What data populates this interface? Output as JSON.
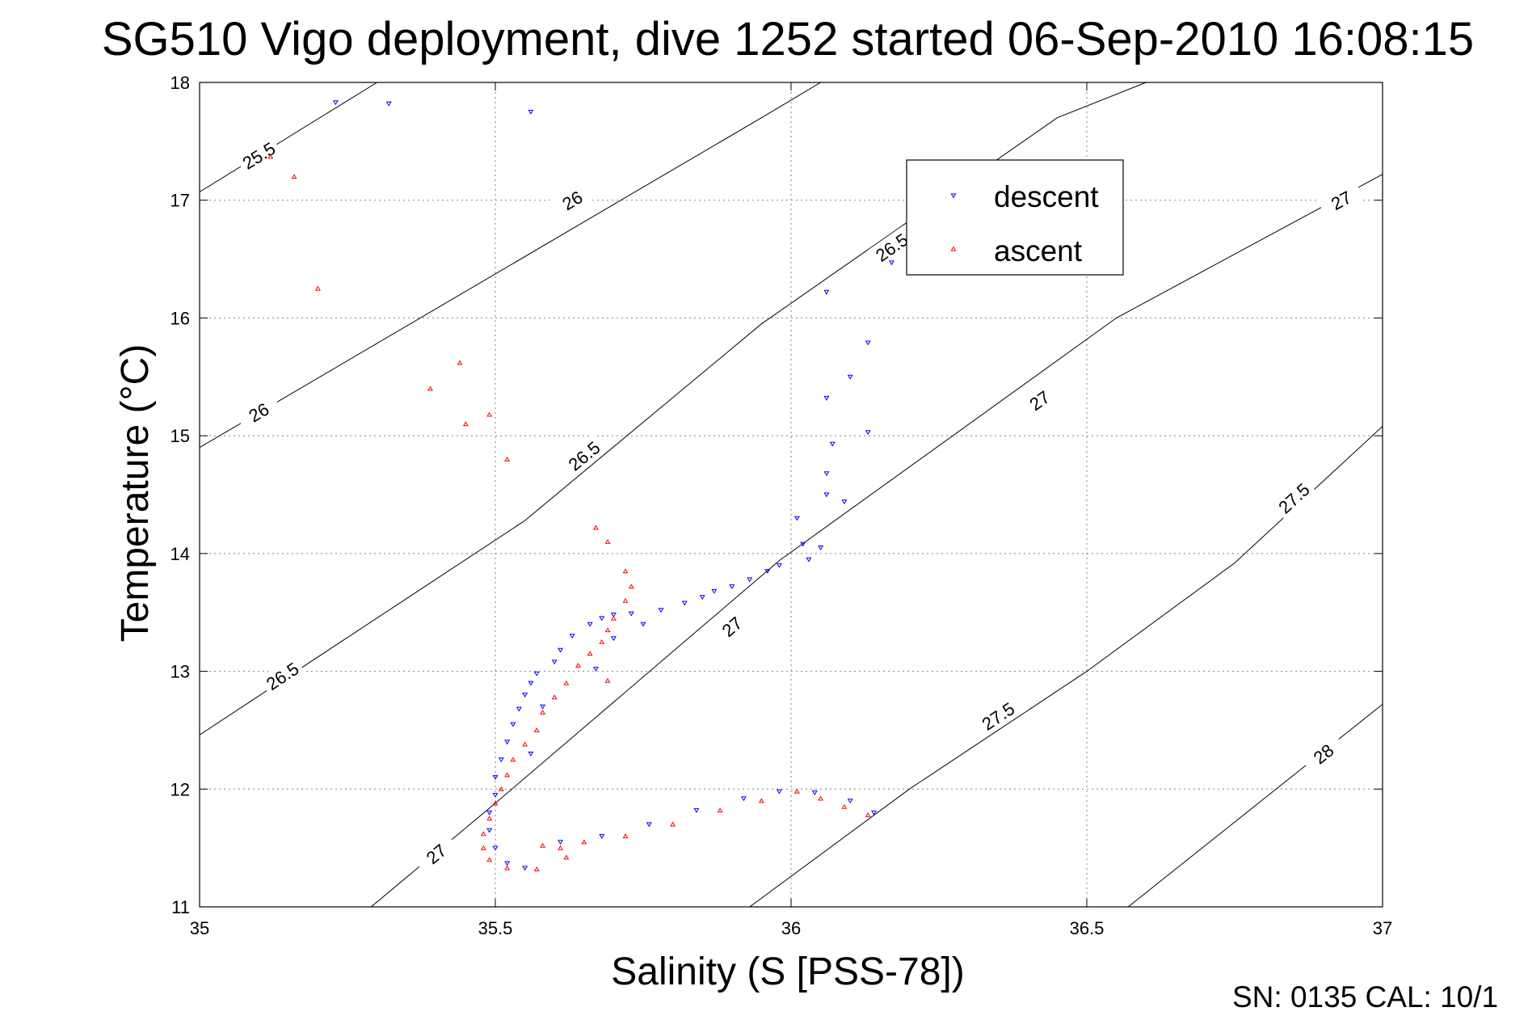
{
  "chart_data": {
    "type": "scatter",
    "title": "SG510 Vigo deployment, dive 1252 started 06-Sep-2010 16:08:15",
    "xlabel": "Salinity (S [PSS-78])",
    "ylabel": "Temperature (°C)",
    "xlim": [
      35,
      37
    ],
    "ylim": [
      11,
      18
    ],
    "xticks": [
      "35",
      "35.5",
      "36",
      "36.5",
      "37"
    ],
    "yticks": [
      "11",
      "12",
      "13",
      "14",
      "15",
      "16",
      "17",
      "18"
    ],
    "grid": true,
    "legend_position": "upper-right",
    "footer": "SN: 0135  CAL: 10/1",
    "isopycnals": [
      {
        "value": "25.5",
        "points": [
          [
            35.0,
            17.07
          ],
          [
            35.3,
            18.0
          ]
        ],
        "labels": [
          [
            35.1,
            17.38
          ]
        ]
      },
      {
        "value": "26",
        "points": [
          [
            35.0,
            14.9
          ],
          [
            35.78,
            17.2
          ],
          [
            35.95,
            17.7
          ],
          [
            36.05,
            18.0
          ]
        ],
        "labels": [
          [
            35.1,
            15.2
          ],
          [
            35.63,
            17.0
          ]
        ]
      },
      {
        "value": "26.5",
        "points": [
          [
            35.0,
            12.46
          ],
          [
            35.55,
            14.28
          ],
          [
            35.95,
            15.95
          ],
          [
            36.45,
            17.7
          ],
          [
            36.6,
            18.0
          ]
        ],
        "labels": [
          [
            35.14,
            12.96
          ],
          [
            35.65,
            14.83
          ],
          [
            36.17,
            16.6
          ]
        ]
      },
      {
        "value": "27",
        "points": [
          [
            35.29,
            11.0
          ],
          [
            35.5,
            11.88
          ],
          [
            35.98,
            13.94
          ],
          [
            36.55,
            16.0
          ],
          [
            37.0,
            17.22
          ]
        ],
        "labels": [
          [
            35.4,
            11.45
          ],
          [
            35.9,
            13.38
          ],
          [
            36.42,
            15.3
          ],
          [
            36.93,
            17.0
          ]
        ]
      },
      {
        "value": "27.5",
        "points": [
          [
            35.93,
            11.0
          ],
          [
            36.2,
            12.0
          ],
          [
            36.5,
            13.0
          ],
          [
            36.75,
            13.92
          ],
          [
            37.0,
            15.08
          ]
        ],
        "labels": [
          [
            36.35,
            12.62
          ],
          [
            36.85,
            14.47
          ]
        ]
      },
      {
        "value": "28",
        "points": [
          [
            36.57,
            11.0
          ],
          [
            37.0,
            12.72
          ]
        ],
        "labels": [
          [
            36.9,
            12.3
          ]
        ]
      }
    ],
    "series": [
      {
        "name": "descent",
        "color": "#0000ff",
        "marker": "triangle-down",
        "points": [
          [
            35.23,
            17.83
          ],
          [
            35.32,
            17.82
          ],
          [
            35.56,
            17.75
          ],
          [
            36.06,
            16.22
          ],
          [
            36.17,
            16.47
          ],
          [
            36.13,
            15.79
          ],
          [
            36.1,
            15.5
          ],
          [
            36.06,
            15.32
          ],
          [
            36.13,
            15.03
          ],
          [
            36.07,
            14.93
          ],
          [
            36.06,
            14.68
          ],
          [
            36.06,
            14.5
          ],
          [
            36.09,
            14.44
          ],
          [
            36.01,
            14.3
          ],
          [
            36.02,
            14.08
          ],
          [
            36.05,
            14.05
          ],
          [
            36.03,
            13.95
          ],
          [
            35.98,
            13.9
          ],
          [
            35.96,
            13.85
          ],
          [
            35.93,
            13.78
          ],
          [
            35.9,
            13.72
          ],
          [
            35.87,
            13.68
          ],
          [
            35.85,
            13.63
          ],
          [
            35.82,
            13.58
          ],
          [
            35.78,
            13.52
          ],
          [
            35.73,
            13.49
          ],
          [
            35.7,
            13.48
          ],
          [
            35.68,
            13.45
          ],
          [
            35.66,
            13.4
          ],
          [
            35.63,
            13.3
          ],
          [
            35.61,
            13.18
          ],
          [
            35.6,
            13.08
          ],
          [
            35.57,
            12.98
          ],
          [
            35.56,
            12.9
          ],
          [
            35.55,
            12.8
          ],
          [
            35.54,
            12.68
          ],
          [
            35.53,
            12.55
          ],
          [
            35.52,
            12.4
          ],
          [
            35.51,
            12.25
          ],
          [
            35.5,
            12.1
          ],
          [
            35.5,
            11.95
          ],
          [
            35.49,
            11.8
          ],
          [
            35.49,
            11.65
          ],
          [
            35.5,
            11.5
          ],
          [
            35.52,
            11.37
          ],
          [
            35.55,
            11.33
          ],
          [
            35.61,
            11.55
          ],
          [
            35.68,
            11.6
          ],
          [
            35.76,
            11.7
          ],
          [
            35.84,
            11.82
          ],
          [
            35.92,
            11.92
          ],
          [
            35.98,
            11.98
          ],
          [
            36.04,
            11.97
          ],
          [
            36.1,
            11.9
          ],
          [
            36.14,
            11.8
          ],
          [
            35.67,
            13.02
          ],
          [
            35.7,
            13.28
          ],
          [
            35.75,
            13.4
          ],
          [
            35.58,
            12.7
          ],
          [
            35.56,
            12.3
          ]
        ]
      },
      {
        "name": "ascent",
        "color": "#ff0000",
        "marker": "triangle-up",
        "points": [
          [
            35.12,
            17.37
          ],
          [
            35.16,
            17.2
          ],
          [
            35.2,
            16.25
          ],
          [
            35.39,
            15.4
          ],
          [
            35.44,
            15.62
          ],
          [
            35.45,
            15.1
          ],
          [
            35.49,
            15.18
          ],
          [
            35.52,
            14.8
          ],
          [
            35.67,
            14.22
          ],
          [
            35.69,
            14.1
          ],
          [
            35.72,
            13.85
          ],
          [
            35.73,
            13.72
          ],
          [
            35.72,
            13.6
          ],
          [
            35.7,
            13.45
          ],
          [
            35.69,
            13.35
          ],
          [
            35.68,
            13.25
          ],
          [
            35.66,
            13.15
          ],
          [
            35.64,
            13.05
          ],
          [
            35.62,
            12.9
          ],
          [
            35.6,
            12.78
          ],
          [
            35.58,
            12.65
          ],
          [
            35.57,
            12.5
          ],
          [
            35.55,
            12.38
          ],
          [
            35.53,
            12.25
          ],
          [
            35.52,
            12.12
          ],
          [
            35.51,
            12.0
          ],
          [
            35.5,
            11.88
          ],
          [
            35.49,
            11.75
          ],
          [
            35.48,
            11.62
          ],
          [
            35.48,
            11.5
          ],
          [
            35.49,
            11.4
          ],
          [
            35.52,
            11.33
          ],
          [
            35.57,
            11.32
          ],
          [
            35.61,
            11.5
          ],
          [
            35.65,
            11.55
          ],
          [
            35.72,
            11.6
          ],
          [
            35.8,
            11.7
          ],
          [
            35.88,
            11.82
          ],
          [
            35.95,
            11.9
          ],
          [
            36.01,
            11.98
          ],
          [
            36.05,
            11.92
          ],
          [
            36.09,
            11.85
          ],
          [
            36.13,
            11.78
          ],
          [
            35.58,
            11.52
          ],
          [
            35.62,
            11.42
          ],
          [
            35.69,
            12.92
          ]
        ]
      }
    ]
  },
  "colors": {
    "descent": "#0000ff",
    "ascent": "#ff0000",
    "axis": "#000000",
    "grid": "#808080"
  }
}
